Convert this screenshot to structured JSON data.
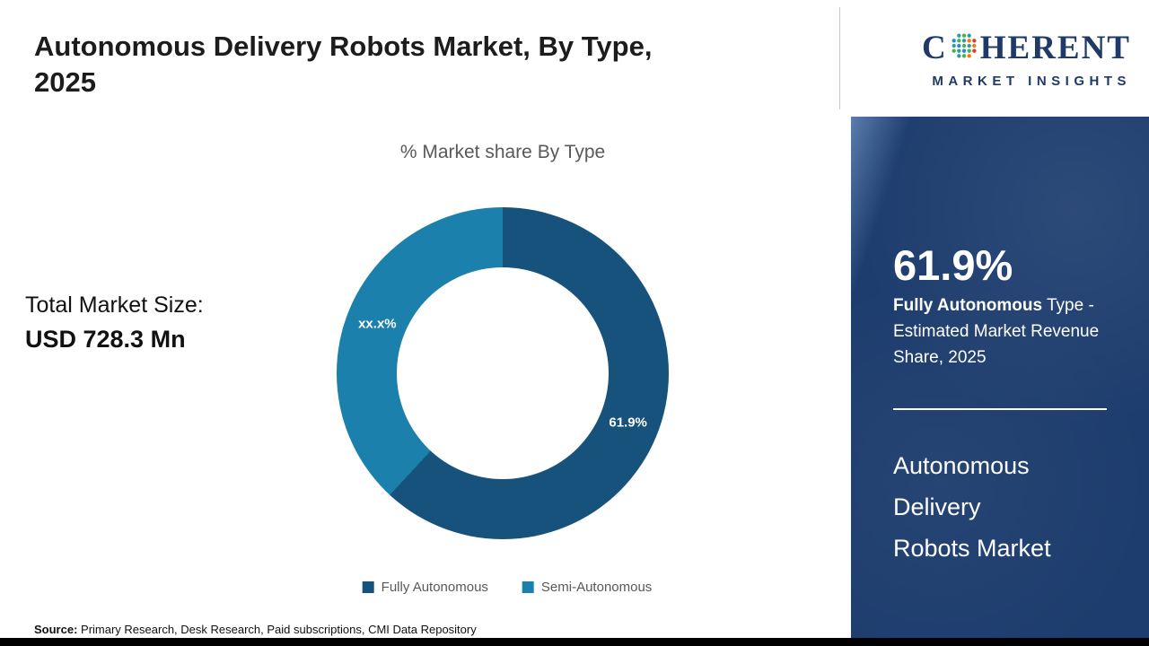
{
  "page": {
    "title_lines": [
      "Autonomous Delivery Robots Market, By Type,",
      "2025"
    ],
    "source_label": "Source:",
    "source_text": " Primary Research, Desk Research, Paid subscriptions, CMI Data Repository"
  },
  "left": {
    "total_label": "Total Market Size:",
    "total_value": "USD 728.3 Mn"
  },
  "chart_data": {
    "type": "pie",
    "donut": true,
    "title": "% Market share By Type",
    "legend_position": "bottom",
    "series": [
      {
        "name": "Fully Autonomous",
        "value": 61.9,
        "label": "61.9%",
        "color": "#16527c"
      },
      {
        "name": "Semi-Autonomous",
        "value": 38.1,
        "label": "xx.x%",
        "color": "#1b80ab"
      }
    ]
  },
  "sidebar": {
    "logo": {
      "word_start": "C",
      "word_end": "HERENT",
      "subtitle": "MARKET INSIGHTS"
    },
    "stat_value": "61.9%",
    "stat_bold": "Fully Autonomous",
    "stat_rest": " Type - Estimated Market Revenue Share, 2025",
    "market_name_lines": [
      "Autonomous",
      "Delivery",
      "Robots Market"
    ]
  },
  "colors": {
    "sidebar_bg": "#1d3d6e",
    "slice_fully_autonomous": "#16527c",
    "slice_semi_autonomous": "#1b80ab",
    "logo_navy": "#1f3a68",
    "muted_text": "#595959"
  }
}
